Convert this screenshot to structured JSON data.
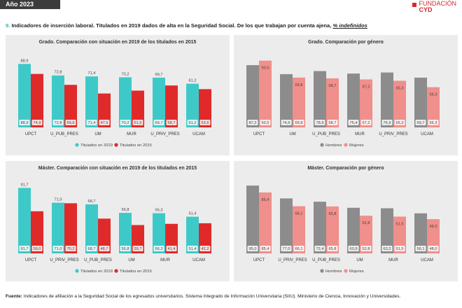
{
  "header": {
    "year_label": "Año 2023",
    "logo_line1": "FUNDACIÓN",
    "logo_line2": "CYD",
    "section_number": "9.",
    "title_main": "Indicadores de inserción laboral. Titulados en 2019 dados de alta en la Seguridad Social. De los que trabajan por cuenta ajena,",
    "title_underlined": "% indefinidos"
  },
  "colors": {
    "teal": "#3ec9c9",
    "red": "#e02a2a",
    "gray": "#8c8c8c",
    "pink": "#f08f8b",
    "panel_bg": "#ececec"
  },
  "chart_data": [
    {
      "type": "bar",
      "title": "Grado. Comparación con situación en 2019 de los titulados en 2015",
      "categories": [
        "UPCT",
        "U_PUB_PRES",
        "UM",
        "MUR",
        "U_PRIV_PRES",
        "UCAM"
      ],
      "series": [
        {
          "name": "Titulados en 2019",
          "values": [
            88.9,
            72.8,
            71.4,
            70.2,
            69.7,
            61.2
          ]
        },
        {
          "name": "Titulados en 2015",
          "values": [
            74.9,
            59.6,
            47.5,
            51.5,
            58.7,
            53.6
          ]
        }
      ],
      "ylim": [
        0,
        100
      ],
      "legend": "bottom"
    },
    {
      "type": "bar",
      "title": "Grado. Comparación por género",
      "categories": [
        "UPCT",
        "UM",
        "U_PUB_PRES",
        "MUR",
        "U_PRIV_PRES",
        "UCAM"
      ],
      "series": [
        {
          "name": "Hombres",
          "values": [
            87.2,
            74.6,
            78.9,
            75.4,
            76.9,
            69.7
          ]
        },
        {
          "name": "Mujeres",
          "values": [
            93.5,
            69.8,
            68.7,
            67.2,
            65.3,
            56.3
          ]
        }
      ],
      "ylim": [
        0,
        100
      ],
      "legend": "bottom"
    },
    {
      "type": "bar",
      "title": "Máster. Comparación con situación en 2019 de los titulados en 2015",
      "categories": [
        "UPCT",
        "U_PRIV_PRES",
        "U_PUB_PRES",
        "UM",
        "MUR",
        "UCAM"
      ],
      "series": [
        {
          "name": "Titulados en 2019",
          "values": [
            91.7,
            71.0,
            68.7,
            56.8,
            56.3,
            51.4
          ]
        },
        {
          "name": "Titulados en 2015",
          "values": [
            59.0,
            70.2,
            48.7,
            39.7,
            41.4,
            42.2
          ]
        }
      ],
      "ylim": [
        0,
        100
      ],
      "legend": "bottom"
    },
    {
      "type": "bar",
      "title": "Máster. Comparación por género",
      "categories": [
        "UPCT",
        "U_PRIV_PRES",
        "U_PUB_PRES",
        "UM",
        "MUR",
        "UCAM"
      ],
      "series": [
        {
          "name": "Hombres",
          "values": [
            95.0,
            77.0,
            72.4,
            63.9,
            63.2,
            56.1
          ]
        },
        {
          "name": "Mujeres",
          "values": [
            85.4,
            66.1,
            65.8,
            52.8,
            51.5,
            48.0
          ]
        }
      ],
      "ylim": [
        0,
        100
      ],
      "legend": "bottom"
    }
  ],
  "footer": {
    "label": "Fuente:",
    "text": "Indicadores de afiliación a la Seguridad Social de los egresados universitarios. Sistema Integrado de Información Universitaria (SIIU). Ministerio de Ciencia, Innovación y Universidades."
  }
}
